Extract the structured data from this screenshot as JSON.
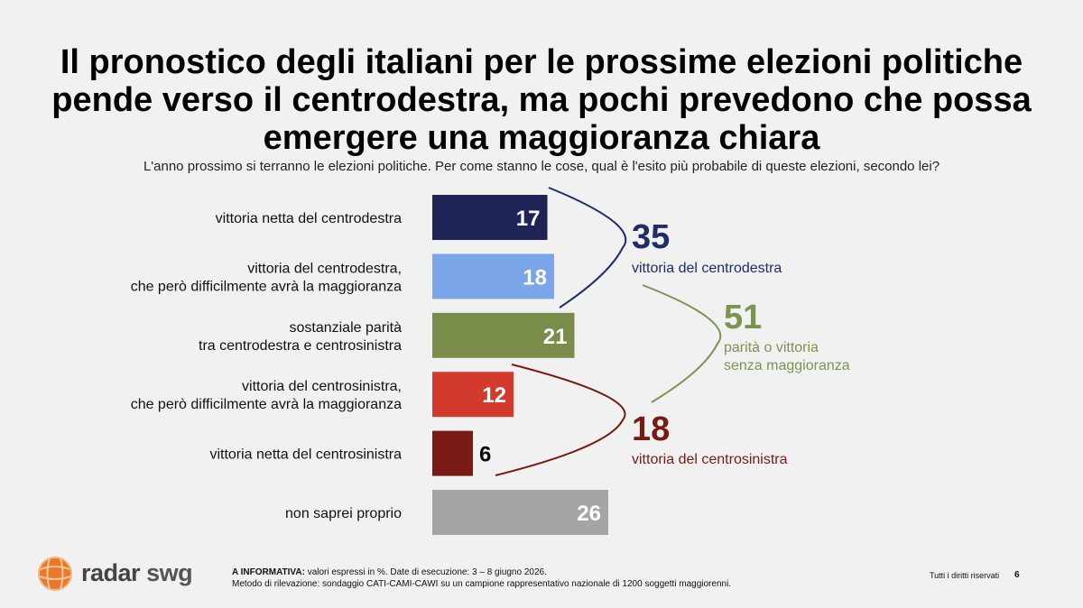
{
  "title": "Il pronostico degli italiani per le prossime elezioni politiche pende verso il centrodestra, ma pochi prevedono che possa emergere una maggioranza chiara",
  "subtitle": "L'anno prossimo si terranno le elezioni politiche. Per come stanno le cose, qual è l'esito più probabile di queste elezioni, secondo lei?",
  "chart_data": {
    "type": "bar",
    "orientation": "horizontal",
    "unit": "%",
    "categories": [
      [
        "vittoria netta del centrodestra"
      ],
      [
        "vittoria del centrodestra,",
        "che però difficilmente avrà la maggioranza"
      ],
      [
        "sostanziale parità",
        "tra centrodestra e centrosinistra"
      ],
      [
        "vittoria del centrosinistra,",
        "che però difficilmente avrà la maggioranza"
      ],
      [
        "vittoria netta del centrosinistra"
      ],
      [
        "non saprei proprio"
      ]
    ],
    "values": [
      17,
      18,
      21,
      12,
      6,
      26
    ],
    "colors": [
      "#1f2456",
      "#7aa5e8",
      "#7a8c4a",
      "#d13a2c",
      "#7a1a14",
      "#a5a5a5"
    ],
    "groups": [
      {
        "total": "35",
        "label": [
          "vittoria del centrodestra"
        ],
        "color": "#1f2d6b",
        "from": 0,
        "to": 1
      },
      {
        "total": "51",
        "label": [
          "parità o vittoria",
          "senza maggioranza"
        ],
        "color": "#7b9450",
        "from": 1,
        "to": 3
      },
      {
        "total": "18",
        "label": [
          "vittoria del centrosinistra"
        ],
        "color": "#7a1a14",
        "from": 3,
        "to": 4
      }
    ]
  },
  "footer": {
    "note_bold": "A INFORMATIVA:",
    "note_line1": " valori espressi in %. Date di esecuzione: 3 – 8 giugno 2026.",
    "note_line2": "Metodo di rilevazione: sondaggio CATI-CAMI-CAWI su un campione rappresentativo nazionale di 1200 soggetti maggiorenni.",
    "rights": "Tutti i diritti riservati",
    "page": "6"
  },
  "logo": {
    "brand": "radar",
    "brand2": "swg",
    "icon": "globe-icon"
  }
}
